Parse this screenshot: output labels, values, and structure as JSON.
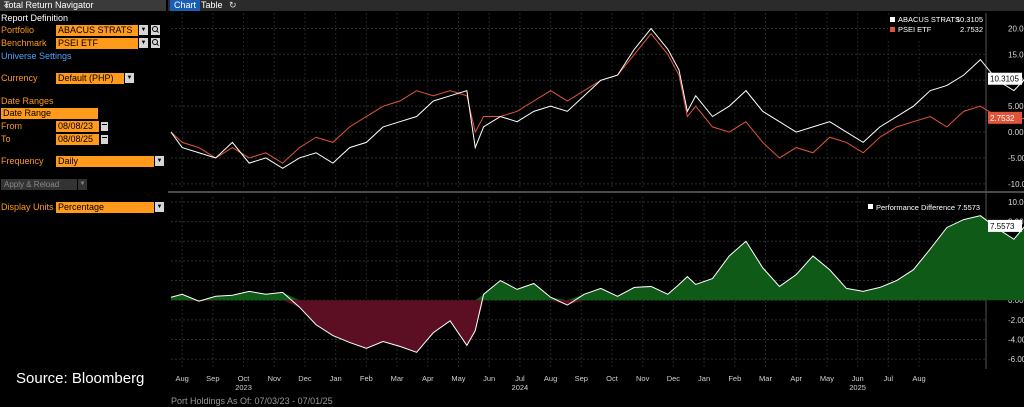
{
  "panel": {
    "title": "Total Return Navigator",
    "report_definition": "Report Definition",
    "portfolio_label": "Portfolio",
    "portfolio_value": "ABACUS STRATS",
    "benchmark_label": "Benchmark",
    "benchmark_value": "PSEI ETF",
    "universe_settings": "Universe Settings",
    "currency_label": "Currency",
    "currency_value": "Default (PHP)",
    "date_ranges_label": "Date Ranges",
    "date_range_value": "Date Range",
    "from_label": "From",
    "from_value": "08/08/23",
    "to_label": "To",
    "to_value": "08/08/25",
    "frequency_label": "Frequency",
    "frequency_value": "Daily",
    "apply_label": "Apply & Reload",
    "display_units_label": "Display Units",
    "display_units_value": "Percentage"
  },
  "tabs": [
    {
      "label": "Chart",
      "active": true
    },
    {
      "label": "Table",
      "active": false
    }
  ],
  "source_text": "Source: Bloomberg",
  "footer_text": "Port Holdings As Of: 07/03/23 - 07/01/25",
  "colors": {
    "accent": "#ff9a1a",
    "portfolio_line": "#ffffff",
    "benchmark_line": "#e0553a",
    "positive_fill": "#0f5a16",
    "negative_fill": "#5c0f22"
  },
  "chart_data": [
    {
      "type": "line",
      "series": [
        {
          "name": "ABACUS STRATS",
          "last_value": "10.3105",
          "values": [
            [
              0,
              0
            ],
            [
              0.2,
              -3
            ],
            [
              0.5,
              -4
            ],
            [
              0.8,
              -5
            ],
            [
              1.1,
              -2
            ],
            [
              1.4,
              -6
            ],
            [
              1.7,
              -5
            ],
            [
              2.0,
              -7
            ],
            [
              2.3,
              -5
            ],
            [
              2.6,
              -4
            ],
            [
              2.9,
              -6
            ],
            [
              3.2,
              -3
            ],
            [
              3.5,
              -2
            ],
            [
              3.8,
              1
            ],
            [
              4.1,
              2
            ],
            [
              4.4,
              3
            ],
            [
              4.7,
              6
            ],
            [
              5.0,
              7
            ],
            [
              5.3,
              8
            ],
            [
              5.45,
              -3
            ],
            [
              5.6,
              1
            ],
            [
              5.9,
              3
            ],
            [
              6.2,
              2
            ],
            [
              6.5,
              4
            ],
            [
              6.8,
              5
            ],
            [
              7.1,
              4
            ],
            [
              7.4,
              7
            ],
            [
              7.7,
              10
            ],
            [
              8.0,
              11
            ],
            [
              8.3,
              16
            ],
            [
              8.6,
              20
            ],
            [
              8.9,
              16
            ],
            [
              9.1,
              12
            ],
            [
              9.25,
              4
            ],
            [
              9.4,
              7
            ],
            [
              9.7,
              3
            ],
            [
              10.0,
              5
            ],
            [
              10.3,
              8
            ],
            [
              10.6,
              4
            ],
            [
              10.9,
              2
            ],
            [
              11.2,
              0
            ],
            [
              11.5,
              1
            ],
            [
              11.8,
              2
            ],
            [
              12.1,
              0
            ],
            [
              12.4,
              -2
            ],
            [
              12.7,
              1
            ],
            [
              13.0,
              3
            ],
            [
              13.3,
              5
            ],
            [
              13.6,
              8
            ],
            [
              13.9,
              9
            ],
            [
              14.2,
              11
            ],
            [
              14.5,
              14
            ],
            [
              14.8,
              10
            ],
            [
              15.1,
              8
            ],
            [
              15.3,
              10.3
            ]
          ]
        },
        {
          "name": "PSEI ETF",
          "last_value": "2.7532",
          "values": [
            [
              0,
              0
            ],
            [
              0.2,
              -2
            ],
            [
              0.5,
              -3
            ],
            [
              0.8,
              -5
            ],
            [
              1.1,
              -3
            ],
            [
              1.4,
              -5
            ],
            [
              1.7,
              -4
            ],
            [
              2.0,
              -6
            ],
            [
              2.3,
              -3
            ],
            [
              2.6,
              -1
            ],
            [
              2.9,
              -2
            ],
            [
              3.2,
              1
            ],
            [
              3.5,
              3
            ],
            [
              3.8,
              5
            ],
            [
              4.1,
              6
            ],
            [
              4.4,
              8
            ],
            [
              4.7,
              7
            ],
            [
              5.0,
              8
            ],
            [
              5.3,
              7
            ],
            [
              5.45,
              0
            ],
            [
              5.6,
              3
            ],
            [
              5.9,
              3
            ],
            [
              6.2,
              4
            ],
            [
              6.5,
              6
            ],
            [
              6.8,
              8
            ],
            [
              7.1,
              6
            ],
            [
              7.4,
              8
            ],
            [
              7.7,
              10
            ],
            [
              8.0,
              11
            ],
            [
              8.3,
              15
            ],
            [
              8.6,
              19
            ],
            [
              8.9,
              15
            ],
            [
              9.1,
              11
            ],
            [
              9.25,
              3
            ],
            [
              9.4,
              5
            ],
            [
              9.7,
              1
            ],
            [
              10.0,
              0
            ],
            [
              10.3,
              2
            ],
            [
              10.6,
              -2
            ],
            [
              10.9,
              -5
            ],
            [
              11.2,
              -3
            ],
            [
              11.5,
              -4
            ],
            [
              11.8,
              -1
            ],
            [
              12.1,
              -2
            ],
            [
              12.4,
              -4
            ],
            [
              12.7,
              -1
            ],
            [
              13.0,
              1
            ],
            [
              13.3,
              2
            ],
            [
              13.6,
              3
            ],
            [
              13.9,
              1
            ],
            [
              14.2,
              4
            ],
            [
              14.5,
              5
            ],
            [
              14.8,
              3
            ],
            [
              15.1,
              2
            ],
            [
              15.3,
              2.75
            ]
          ]
        }
      ],
      "ylim": [
        -11,
        23
      ],
      "yticks": [
        "20.00",
        "15.00",
        "10.00",
        "5.00",
        "0.00",
        "-5.00",
        "-10.00"
      ],
      "ytick_values": [
        20,
        15,
        10,
        5,
        0,
        -5,
        -10
      ],
      "legend": "top-right",
      "grid": true
    },
    {
      "type": "area",
      "series": [
        {
          "name": "Performance Difference",
          "last_value": "7.5573",
          "values": [
            [
              0,
              0.3
            ],
            [
              0.2,
              0.6
            ],
            [
              0.5,
              -0.1
            ],
            [
              0.8,
              0.4
            ],
            [
              1.1,
              0.5
            ],
            [
              1.4,
              0.9
            ],
            [
              1.7,
              0.6
            ],
            [
              2.0,
              0.8
            ],
            [
              2.3,
              -0.7
            ],
            [
              2.6,
              -2.5
            ],
            [
              2.9,
              -3.6
            ],
            [
              3.2,
              -4.3
            ],
            [
              3.5,
              -4.9
            ],
            [
              3.8,
              -4.2
            ],
            [
              4.1,
              -4.7
            ],
            [
              4.4,
              -5.3
            ],
            [
              4.7,
              -3.3
            ],
            [
              5.0,
              -2.1
            ],
            [
              5.3,
              -4.6
            ],
            [
              5.45,
              -3.1
            ],
            [
              5.6,
              0.6
            ],
            [
              5.9,
              2.0
            ],
            [
              6.2,
              1.1
            ],
            [
              6.5,
              1.7
            ],
            [
              6.8,
              0.3
            ],
            [
              7.1,
              -0.5
            ],
            [
              7.4,
              0.6
            ],
            [
              7.7,
              1.2
            ],
            [
              8.0,
              0.4
            ],
            [
              8.3,
              1.3
            ],
            [
              8.6,
              1.4
            ],
            [
              8.9,
              0.6
            ],
            [
              9.1,
              1.6
            ],
            [
              9.25,
              2.4
            ],
            [
              9.4,
              1.6
            ],
            [
              9.7,
              2.2
            ],
            [
              10.0,
              4.5
            ],
            [
              10.3,
              6.0
            ],
            [
              10.6,
              3.3
            ],
            [
              10.9,
              1.4
            ],
            [
              11.2,
              2.6
            ],
            [
              11.5,
              4.5
            ],
            [
              11.8,
              3.1
            ],
            [
              12.1,
              1.2
            ],
            [
              12.4,
              0.9
            ],
            [
              12.7,
              1.3
            ],
            [
              13.0,
              2.0
            ],
            [
              13.3,
              3.1
            ],
            [
              13.6,
              5.2
            ],
            [
              13.9,
              7.4
            ],
            [
              14.2,
              8.2
            ],
            [
              14.5,
              8.6
            ],
            [
              14.8,
              7.3
            ],
            [
              15.1,
              6.2
            ],
            [
              15.3,
              7.56
            ]
          ]
        }
      ],
      "ylim": [
        -7,
        10.5
      ],
      "yticks": [
        "10.00",
        "8.00",
        "6.00",
        "4.00",
        "2.00",
        "0.00",
        "-2.00",
        "-4.00",
        "-6.00"
      ],
      "ytick_values": [
        10,
        8,
        6,
        4,
        2,
        0,
        -2,
        -4,
        -6
      ],
      "legend": "top-right",
      "grid": true
    }
  ],
  "x_axis": {
    "months": [
      "Aug",
      "Sep",
      "Oct",
      "Nov",
      "Dec",
      "Jan",
      "Feb",
      "Mar",
      "Apr",
      "May",
      "Jun",
      "Jul",
      "Aug",
      "Sep",
      "Oct",
      "Nov",
      "Dec",
      "Jan",
      "Feb",
      "Mar",
      "Apr",
      "May",
      "Jun",
      "Jul",
      "Aug"
    ],
    "month_positions": [
      0.2,
      0.75,
      1.3,
      1.85,
      2.4,
      2.95,
      3.5,
      4.05,
      4.6,
      5.15,
      5.7,
      6.25,
      6.8,
      7.35,
      7.9,
      8.45,
      9.0,
      9.55,
      10.1,
      10.65,
      11.2,
      11.75,
      12.3,
      12.85,
      13.4
    ],
    "years": [
      {
        "label": "2023",
        "at": 1.3
      },
      {
        "label": "2024",
        "at": 6.25
      },
      {
        "label": "2025",
        "at": 12.3
      }
    ],
    "domain": [
      0,
      14.6
    ]
  }
}
